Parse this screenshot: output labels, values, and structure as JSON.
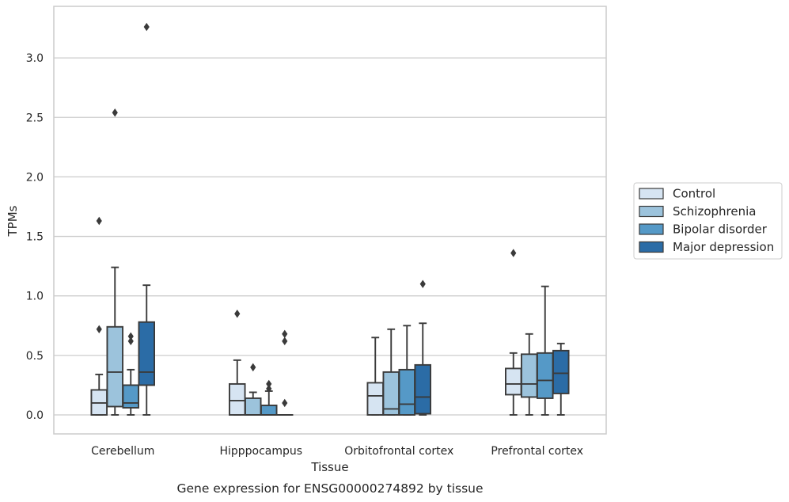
{
  "chart_data": {
    "type": "box",
    "xlabel": "Tissue",
    "ylabel": "TPMs",
    "caption": "Gene expression for ENSG00000274892 by tissue",
    "ylim": [
      -0.16,
      3.43
    ],
    "yticks": [
      0.0,
      0.5,
      1.0,
      1.5,
      2.0,
      2.5,
      3.0
    ],
    "ytick_labels": [
      "0.0",
      "0.5",
      "1.0",
      "1.5",
      "2.0",
      "2.5",
      "3.0"
    ],
    "grid": "horizontal",
    "legend_position": "right",
    "categories": [
      "Cerebellum",
      "Hipppocampus",
      "Orbitofrontal cortex",
      "Prefrontal cortex"
    ],
    "series": [
      {
        "name": "Control",
        "color": "#d6e4f2",
        "boxes": [
          {
            "whislo": 0.0,
            "q1": 0.0,
            "med": 0.1,
            "q3": 0.21,
            "whishi": 0.34,
            "fliers": [
              0.72,
              1.63
            ]
          },
          {
            "whislo": 0.0,
            "q1": 0.0,
            "med": 0.12,
            "q3": 0.26,
            "whishi": 0.46,
            "fliers": [
              0.85
            ]
          },
          {
            "whislo": 0.0,
            "q1": 0.0,
            "med": 0.16,
            "q3": 0.27,
            "whishi": 0.65,
            "fliers": []
          },
          {
            "whislo": 0.0,
            "q1": 0.17,
            "med": 0.26,
            "q3": 0.39,
            "whishi": 0.52,
            "fliers": [
              1.36
            ]
          }
        ]
      },
      {
        "name": "Schizophrenia",
        "color": "#9cc3dc",
        "boxes": [
          {
            "whislo": 0.0,
            "q1": 0.07,
            "med": 0.36,
            "q3": 0.74,
            "whishi": 1.24,
            "fliers": [
              2.54
            ]
          },
          {
            "whislo": 0.0,
            "q1": 0.0,
            "med": 0.0,
            "q3": 0.14,
            "whishi": 0.19,
            "fliers": [
              0.4
            ]
          },
          {
            "whislo": 0.0,
            "q1": 0.0,
            "med": 0.05,
            "q3": 0.36,
            "whishi": 0.72,
            "fliers": []
          },
          {
            "whislo": 0.0,
            "q1": 0.15,
            "med": 0.26,
            "q3": 0.51,
            "whishi": 0.68,
            "fliers": []
          }
        ]
      },
      {
        "name": "Bipolar disorder",
        "color": "#5599c7",
        "boxes": [
          {
            "whislo": 0.0,
            "q1": 0.06,
            "med": 0.1,
            "q3": 0.25,
            "whishi": 0.38,
            "fliers": [
              0.62,
              0.66
            ]
          },
          {
            "whislo": 0.0,
            "q1": 0.0,
            "med": 0.0,
            "q3": 0.08,
            "whishi": 0.2,
            "fliers": [
              0.22,
              0.26
            ]
          },
          {
            "whislo": 0.0,
            "q1": 0.0,
            "med": 0.09,
            "q3": 0.38,
            "whishi": 0.75,
            "fliers": []
          },
          {
            "whislo": 0.0,
            "q1": 0.14,
            "med": 0.29,
            "q3": 0.52,
            "whishi": 1.08,
            "fliers": []
          }
        ]
      },
      {
        "name": "Major depression",
        "color": "#2b6ca6",
        "boxes": [
          {
            "whislo": 0.0,
            "q1": 0.25,
            "med": 0.36,
            "q3": 0.78,
            "whishi": 1.09,
            "fliers": [
              3.26
            ]
          },
          {
            "whislo": 0.0,
            "q1": 0.0,
            "med": 0.0,
            "q3": 0.0,
            "whishi": 0.0,
            "fliers": [
              0.1,
              0.62,
              0.68
            ]
          },
          {
            "whislo": 0.0,
            "q1": 0.01,
            "med": 0.15,
            "q3": 0.42,
            "whishi": 0.77,
            "fliers": [
              1.1
            ]
          },
          {
            "whislo": 0.0,
            "q1": 0.18,
            "med": 0.35,
            "q3": 0.54,
            "whishi": 0.6,
            "fliers": []
          }
        ]
      }
    ]
  }
}
